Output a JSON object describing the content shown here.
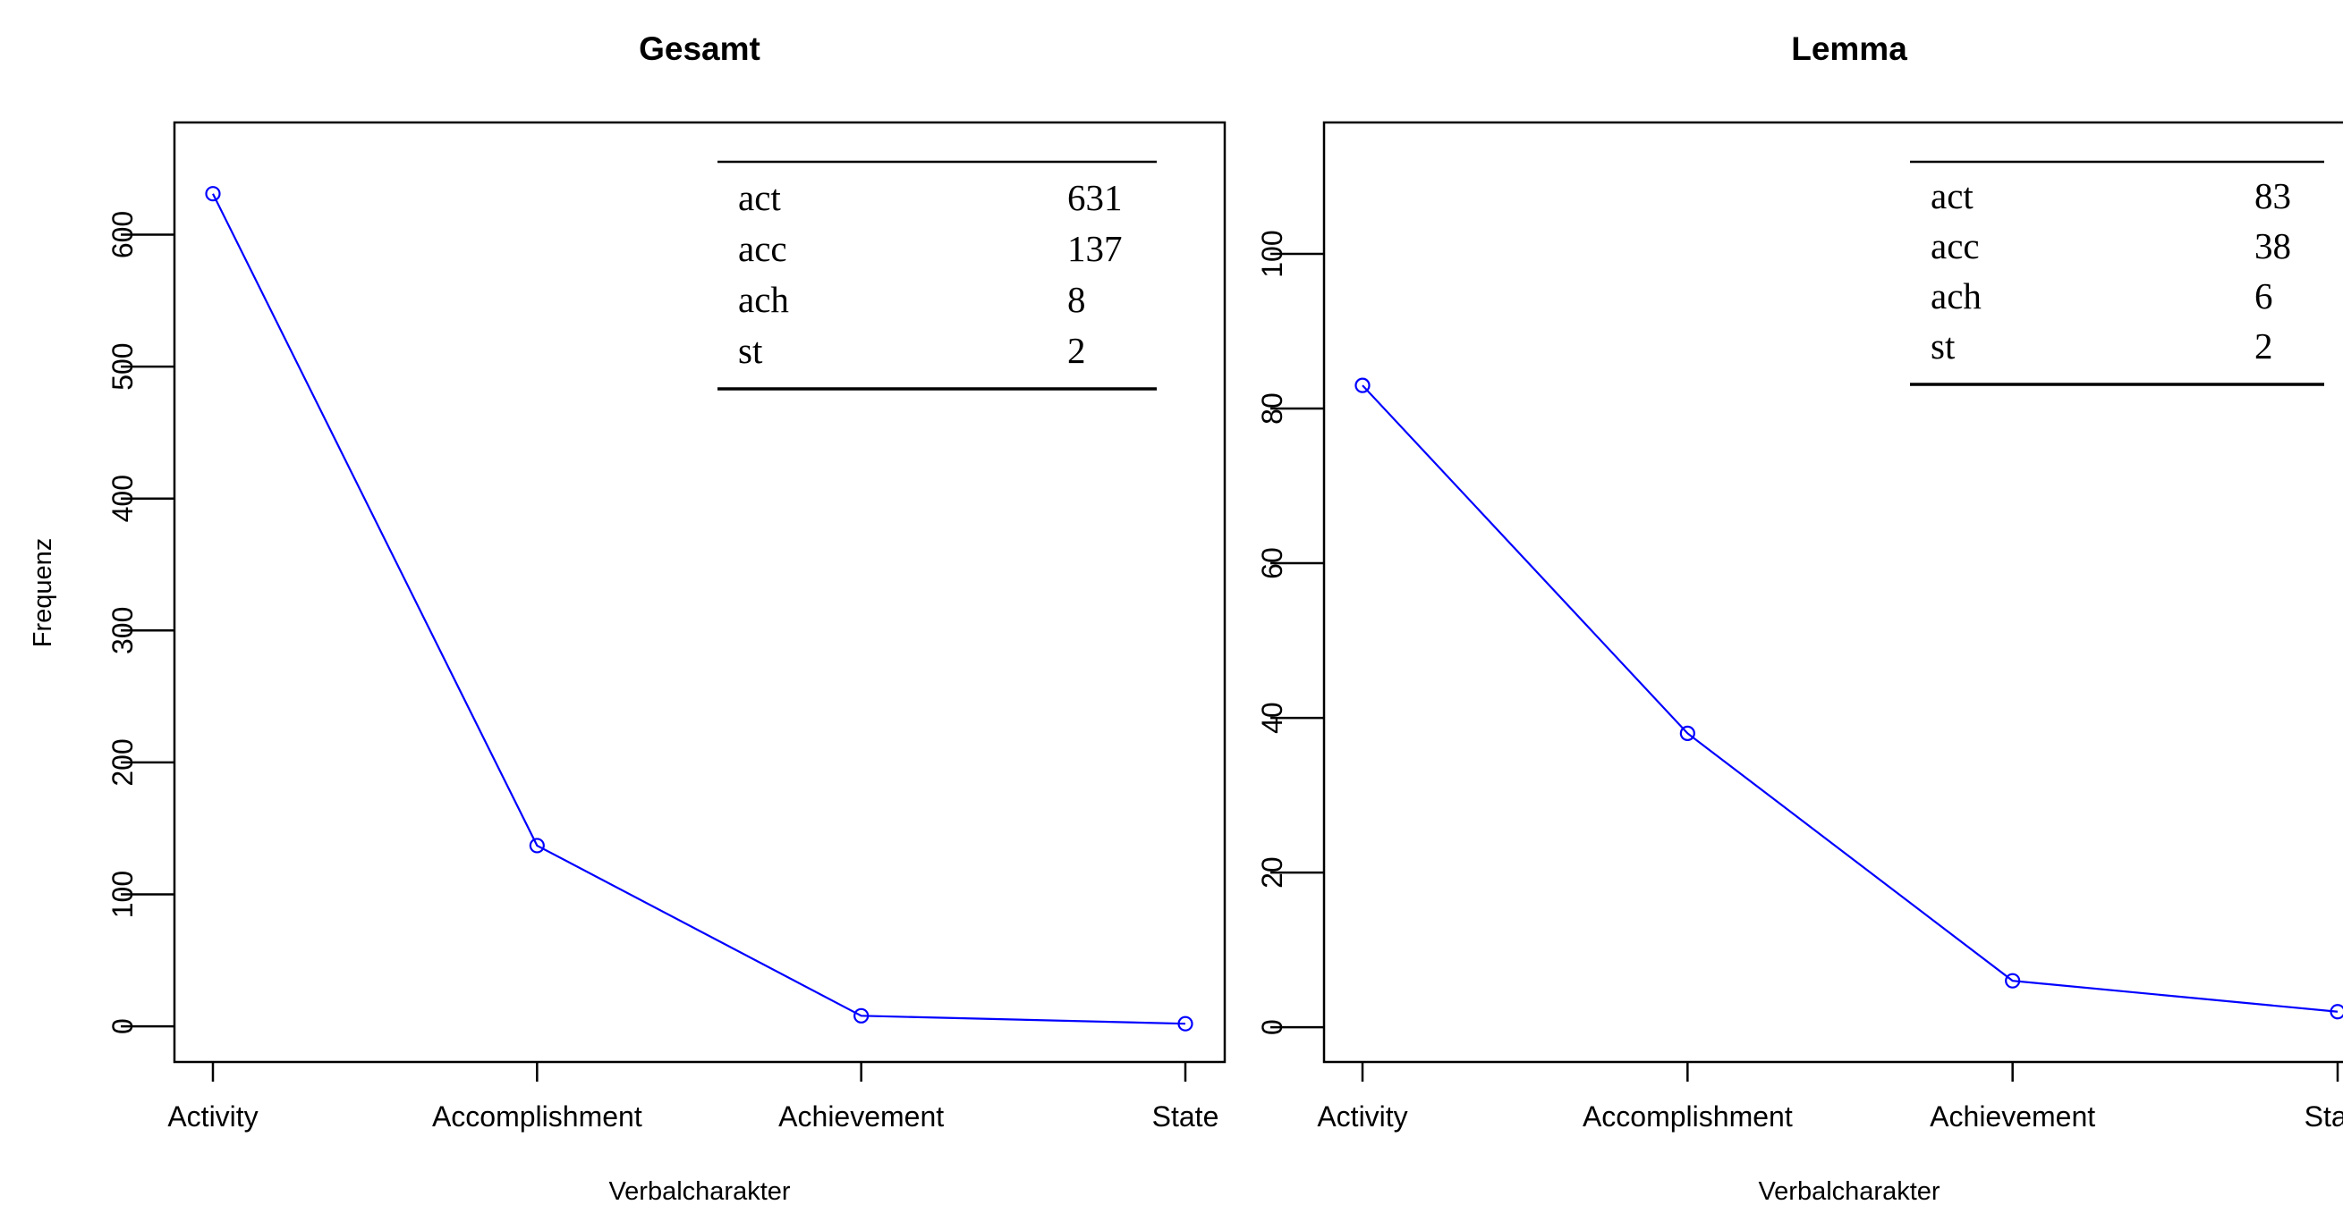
{
  "chart_data": [
    {
      "type": "line",
      "title": "Gesamt",
      "xlabel": "Verbalcharakter",
      "ylabel": "Frequenz",
      "categories": [
        "Activity",
        "Accomplishment",
        "Achievement",
        "State"
      ],
      "values": [
        631,
        137,
        8,
        2
      ],
      "ylim": [
        -27,
        685
      ],
      "yticks": [
        0,
        100,
        200,
        300,
        400,
        500,
        600
      ],
      "line_color": "#0000ff",
      "grid": false,
      "table_position": "top-right",
      "table": [
        {
          "label": "act",
          "value": "631"
        },
        {
          "label": "acc",
          "value": "137"
        },
        {
          "label": "ach",
          "value": "8"
        },
        {
          "label": "st",
          "value": "2"
        }
      ]
    },
    {
      "type": "line",
      "title": "Lemma",
      "xlabel": "Verbalcharakter",
      "ylabel": "",
      "categories": [
        "Activity",
        "Accomplishment",
        "Achievement",
        "State"
      ],
      "values": [
        83,
        38,
        6,
        2
      ],
      "ylim": [
        -4.5,
        117
      ],
      "yticks": [
        0,
        20,
        40,
        60,
        80,
        100
      ],
      "line_color": "#0000ff",
      "grid": false,
      "table_position": "top-right",
      "table": [
        {
          "label": "act",
          "value": "83"
        },
        {
          "label": "acc",
          "value": "38"
        },
        {
          "label": "ach",
          "value": "6"
        },
        {
          "label": "st",
          "value": "2"
        }
      ]
    }
  ]
}
